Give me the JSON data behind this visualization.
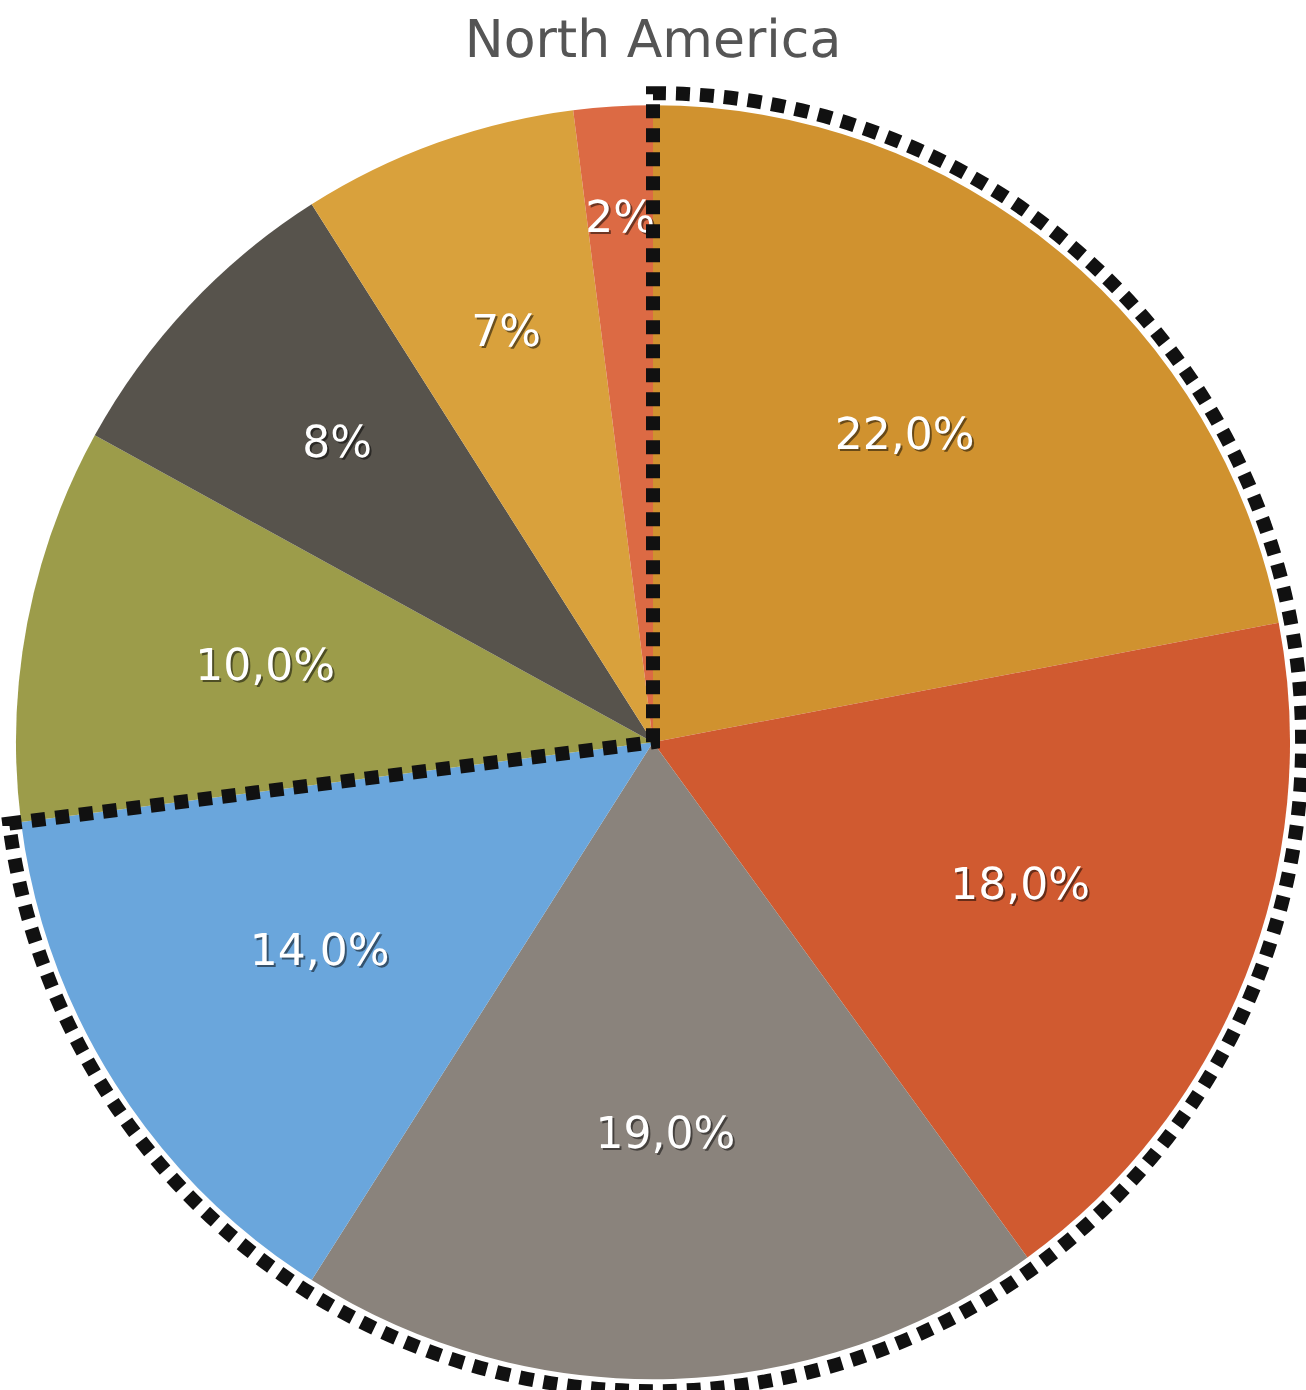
{
  "chart_data": {
    "type": "pie",
    "title": "North America",
    "categories": [
      null,
      null,
      null,
      null,
      null,
      null,
      null,
      null
    ],
    "values": [
      22,
      18,
      19,
      14,
      10,
      8,
      7,
      2
    ],
    "colors": [
      "#d0922f",
      "#d05a30",
      "#8a837c",
      "#6aa6dc",
      "#9c9c4a",
      "#57534c",
      "#d9a13c",
      "#dc6a44"
    ],
    "value_labels": [
      "22,0%",
      "18,0%",
      "19,0%",
      "14,0%",
      "10,0%",
      "8%",
      "7%",
      "2%"
    ],
    "legend": false
  }
}
